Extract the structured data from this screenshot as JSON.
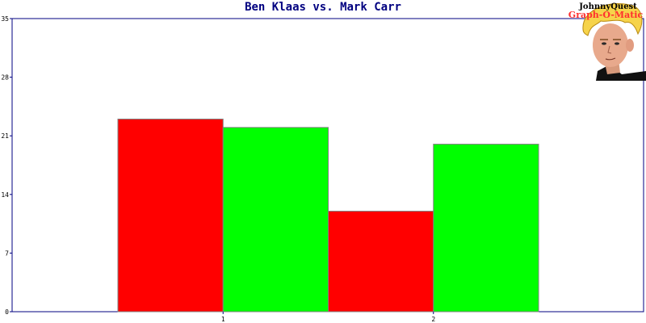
{
  "colors": {
    "axis": "#000080",
    "title": "#000080",
    "series_1": "#ff0000",
    "series_2": "#00ff00"
  },
  "logo": {
    "line1": "JohnnyQuest",
    "line2": "Graph-O-Matic",
    "icon": "cartoon-boy-face-icon"
  },
  "chart_data": {
    "type": "bar",
    "title": "Ben Klaas vs. Mark Carr",
    "xlabel": "",
    "ylabel": "",
    "categories": [
      "1",
      "2"
    ],
    "series": [
      {
        "values": [
          23,
          12
        ]
      },
      {
        "values": [
          22,
          20
        ]
      }
    ],
    "ylim": [
      0,
      35
    ],
    "yticks": [
      "0",
      "7",
      "14",
      "21",
      "28",
      "35"
    ],
    "grid": false,
    "legend": "none"
  }
}
